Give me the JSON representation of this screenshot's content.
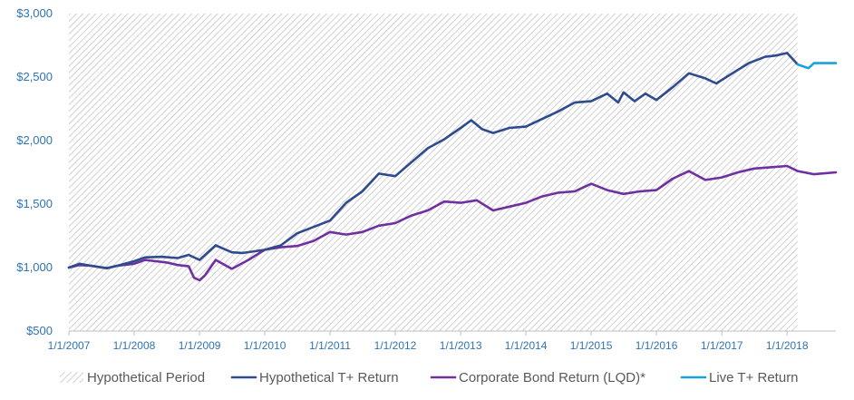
{
  "chart_data": {
    "type": "line",
    "title": "",
    "xlabel": "",
    "ylabel": "",
    "ylim": [
      500,
      3000
    ],
    "xlim": [
      "2007-01-01",
      "2018-10-01"
    ],
    "y_ticks": [
      "$500",
      "$1,000",
      "$1,500",
      "$2,000",
      "$2,500",
      "$3,000"
    ],
    "y_tick_values": [
      500,
      1000,
      1500,
      2000,
      2500,
      3000
    ],
    "x_ticks": [
      "1/1/2007",
      "1/1/2008",
      "1/1/2009",
      "1/1/2010",
      "1/1/2011",
      "1/1/2012",
      "1/1/2013",
      "1/1/2014",
      "1/1/2015",
      "1/1/2016",
      "1/1/2017",
      "1/1/2018"
    ],
    "x_tick_years": [
      2007,
      2008,
      2009,
      2010,
      2011,
      2012,
      2013,
      2014,
      2015,
      2016,
      2017,
      2018
    ],
    "grid": false,
    "legend_position": "bottom",
    "shaded_region": {
      "name": "Hypothetical Period",
      "x_start": "2007-01-01",
      "x_end": "2018-03-01"
    },
    "series": [
      {
        "name": "Hypothetical T+ Return",
        "color": "#2f4b8f",
        "points": [
          [
            "2007-01-01",
            1000
          ],
          [
            "2007-03-01",
            1030
          ],
          [
            "2007-05-01",
            1015
          ],
          [
            "2007-08-01",
            995
          ],
          [
            "2007-10-01",
            1015
          ],
          [
            "2008-01-01",
            1050
          ],
          [
            "2008-03-01",
            1080
          ],
          [
            "2008-06-01",
            1085
          ],
          [
            "2008-09-01",
            1075
          ],
          [
            "2008-11-01",
            1100
          ],
          [
            "2009-01-01",
            1060
          ],
          [
            "2009-04-01",
            1175
          ],
          [
            "2009-07-01",
            1120
          ],
          [
            "2009-09-01",
            1115
          ],
          [
            "2010-01-01",
            1140
          ],
          [
            "2010-04-01",
            1175
          ],
          [
            "2010-07-01",
            1270
          ],
          [
            "2010-10-01",
            1320
          ],
          [
            "2011-01-01",
            1370
          ],
          [
            "2011-04-01",
            1510
          ],
          [
            "2011-07-01",
            1600
          ],
          [
            "2011-10-01",
            1740
          ],
          [
            "2012-01-01",
            1720
          ],
          [
            "2012-04-01",
            1830
          ],
          [
            "2012-07-01",
            1940
          ],
          [
            "2012-10-01",
            2010
          ],
          [
            "2013-01-01",
            2100
          ],
          [
            "2013-03-01",
            2160
          ],
          [
            "2013-05-01",
            2090
          ],
          [
            "2013-07-01",
            2060
          ],
          [
            "2013-10-01",
            2100
          ],
          [
            "2014-01-01",
            2110
          ],
          [
            "2014-04-01",
            2170
          ],
          [
            "2014-07-01",
            2230
          ],
          [
            "2014-10-01",
            2300
          ],
          [
            "2015-01-01",
            2310
          ],
          [
            "2015-04-01",
            2370
          ],
          [
            "2015-06-01",
            2300
          ],
          [
            "2015-07-01",
            2380
          ],
          [
            "2015-09-01",
            2310
          ],
          [
            "2015-11-01",
            2370
          ],
          [
            "2016-01-01",
            2320
          ],
          [
            "2016-04-01",
            2420
          ],
          [
            "2016-07-01",
            2530
          ],
          [
            "2016-10-01",
            2490
          ],
          [
            "2016-12-01",
            2450
          ],
          [
            "2017-03-01",
            2530
          ],
          [
            "2017-06-01",
            2610
          ],
          [
            "2017-09-01",
            2660
          ],
          [
            "2017-11-01",
            2670
          ],
          [
            "2018-01-01",
            2690
          ],
          [
            "2018-03-01",
            2600
          ]
        ]
      },
      {
        "name": "Corporate Bond Return (LQD)*",
        "color": "#7030a0",
        "points": [
          [
            "2007-01-01",
            1000
          ],
          [
            "2007-03-01",
            1020
          ],
          [
            "2007-05-01",
            1015
          ],
          [
            "2007-08-01",
            995
          ],
          [
            "2007-10-01",
            1015
          ],
          [
            "2008-01-01",
            1030
          ],
          [
            "2008-03-01",
            1060
          ],
          [
            "2008-05-01",
            1050
          ],
          [
            "2008-07-01",
            1040
          ],
          [
            "2008-09-01",
            1020
          ],
          [
            "2008-11-01",
            1010
          ],
          [
            "2008-12-01",
            920
          ],
          [
            "2009-01-01",
            900
          ],
          [
            "2009-02-01",
            940
          ],
          [
            "2009-04-01",
            1060
          ],
          [
            "2009-07-01",
            990
          ],
          [
            "2009-10-01",
            1060
          ],
          [
            "2010-01-01",
            1140
          ],
          [
            "2010-04-01",
            1160
          ],
          [
            "2010-07-01",
            1170
          ],
          [
            "2010-10-01",
            1210
          ],
          [
            "2011-01-01",
            1280
          ],
          [
            "2011-04-01",
            1260
          ],
          [
            "2011-07-01",
            1280
          ],
          [
            "2011-10-01",
            1330
          ],
          [
            "2012-01-01",
            1350
          ],
          [
            "2012-04-01",
            1410
          ],
          [
            "2012-07-01",
            1450
          ],
          [
            "2012-10-01",
            1520
          ],
          [
            "2013-01-01",
            1510
          ],
          [
            "2013-04-01",
            1530
          ],
          [
            "2013-07-01",
            1450
          ],
          [
            "2013-10-01",
            1480
          ],
          [
            "2014-01-01",
            1510
          ],
          [
            "2014-04-01",
            1560
          ],
          [
            "2014-07-01",
            1590
          ],
          [
            "2014-10-01",
            1600
          ],
          [
            "2015-01-01",
            1660
          ],
          [
            "2015-04-01",
            1610
          ],
          [
            "2015-07-01",
            1580
          ],
          [
            "2015-10-01",
            1600
          ],
          [
            "2016-01-01",
            1610
          ],
          [
            "2016-04-01",
            1700
          ],
          [
            "2016-07-01",
            1760
          ],
          [
            "2016-10-01",
            1690
          ],
          [
            "2017-01-01",
            1710
          ],
          [
            "2017-04-01",
            1750
          ],
          [
            "2017-07-01",
            1780
          ],
          [
            "2017-10-01",
            1790
          ],
          [
            "2018-01-01",
            1800
          ],
          [
            "2018-03-01",
            1760
          ],
          [
            "2018-06-01",
            1735
          ],
          [
            "2018-10-01",
            1750
          ]
        ]
      },
      {
        "name": "Live T+ Return",
        "color": "#17a2e0",
        "points": [
          [
            "2018-03-01",
            2600
          ],
          [
            "2018-05-01",
            2570
          ],
          [
            "2018-06-01",
            2610
          ],
          [
            "2018-10-01",
            2610
          ]
        ]
      }
    ]
  },
  "legend": [
    {
      "label": "Hypothetical Period",
      "kind": "hatch"
    },
    {
      "label": "Hypothetical T+ Return",
      "kind": "line",
      "color": "#2f4b8f"
    },
    {
      "label": "Corporate Bond Return (LQD)*",
      "kind": "line",
      "color": "#7030a0"
    },
    {
      "label": "Live T+ Return",
      "kind": "line",
      "color": "#17a2e0"
    }
  ]
}
